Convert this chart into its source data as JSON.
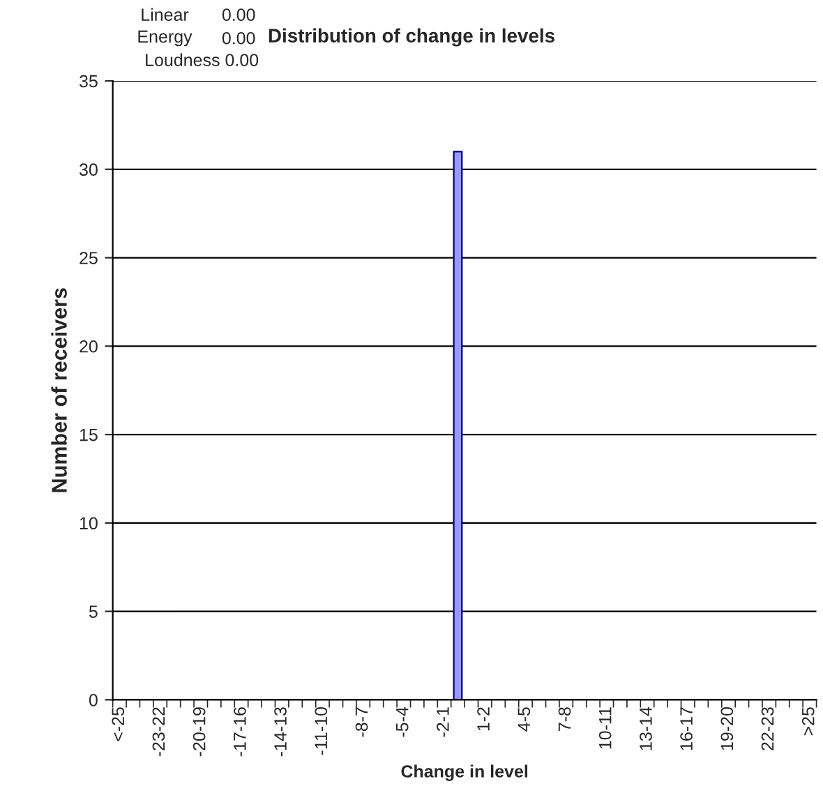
{
  "chart_data": {
    "type": "bar",
    "title": "Distribution of change in levels",
    "xlabel": "Change in level",
    "ylabel": "Number of receivers",
    "categories": [
      "<-25",
      null,
      null,
      "-23-22",
      null,
      null,
      "-20-19",
      null,
      null,
      "-17-16",
      null,
      null,
      "-14-13",
      null,
      null,
      "-11-10",
      null,
      null,
      "-8-7",
      null,
      null,
      "-5-4",
      null,
      null,
      "-2-1",
      null,
      null,
      "1-2",
      null,
      null,
      "4-5",
      null,
      null,
      "7-8",
      null,
      null,
      "10-11",
      null,
      null,
      "13-14",
      null,
      null,
      "16-17",
      null,
      null,
      "19-20",
      null,
      null,
      "22-23",
      null,
      null,
      ">25"
    ],
    "values": [
      0,
      0,
      0,
      0,
      0,
      0,
      0,
      0,
      0,
      0,
      0,
      0,
      0,
      0,
      0,
      0,
      0,
      0,
      0,
      0,
      0,
      0,
      0,
      0,
      0,
      31,
      0,
      0,
      0,
      0,
      0,
      0,
      0,
      0,
      0,
      0,
      0,
      0,
      0,
      0,
      0,
      0,
      0,
      0,
      0,
      0,
      0,
      0,
      0,
      0,
      0,
      0
    ],
    "color": "#9999ff",
    "ylim": [
      0,
      35
    ],
    "yticks": [
      0,
      5,
      10,
      15,
      20,
      25,
      30,
      35
    ],
    "grid": "y",
    "annotations": [
      "Linear",
      "0.00",
      "Energy",
      "0.00",
      "Loudness 0.00"
    ]
  }
}
